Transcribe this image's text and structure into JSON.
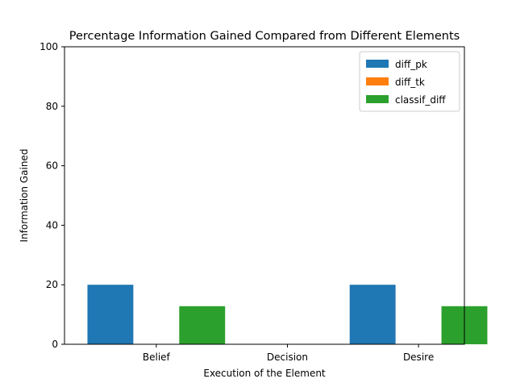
{
  "chart_data": {
    "type": "bar",
    "title": "Percentage Information Gained Compared from Different Elements",
    "xlabel": "Execution of the Element",
    "ylabel": "Information Gained",
    "categories": [
      "Belief",
      "Decision",
      "Desire"
    ],
    "ylim": [
      0,
      100
    ],
    "yticks": [
      0,
      20,
      40,
      60,
      80,
      100
    ],
    "grid": false,
    "legend_position": "top-right",
    "series": [
      {
        "name": "diff_pk",
        "values": [
          20,
          0,
          20
        ],
        "color": "#1f77b4"
      },
      {
        "name": "diff_tk",
        "values": [
          0,
          0,
          0
        ],
        "color": "#ff7f0e"
      },
      {
        "name": "classif_diff",
        "values": [
          12.8,
          0,
          12.8
        ],
        "color": "#2ca02c"
      }
    ]
  }
}
